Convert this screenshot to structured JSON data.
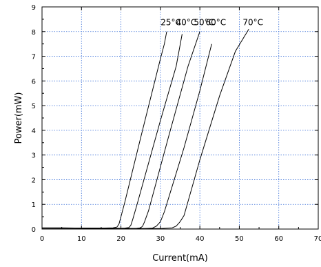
{
  "chart_data": {
    "type": "line",
    "title": "",
    "xlabel": "Current(mA)",
    "ylabel": "Power(mW)",
    "xlim": [
      0,
      70
    ],
    "ylim": [
      0,
      9
    ],
    "xticks": [
      "0",
      "10",
      "20",
      "30",
      "40",
      "50",
      "60",
      "70"
    ],
    "yticks": [
      "0",
      "1",
      "2",
      "3",
      "4",
      "5",
      "6",
      "7",
      "8",
      "9"
    ],
    "grid": true,
    "series": [
      {
        "name": "25°C",
        "x": [
          0,
          5,
          10,
          15,
          18,
          19,
          19.5,
          20,
          21,
          25,
          30,
          31,
          31.6
        ],
        "y": [
          0.05,
          0.05,
          0.04,
          0.04,
          0.05,
          0.08,
          0.2,
          0.5,
          1.1,
          3.7,
          6.9,
          7.5,
          8.0
        ]
      },
      {
        "name": "40°C",
        "x": [
          0,
          10,
          20,
          21,
          22,
          22.5,
          23,
          24,
          30,
          34,
          35.5
        ],
        "y": [
          0.04,
          0.04,
          0.03,
          0.04,
          0.06,
          0.15,
          0.4,
          0.95,
          4.4,
          6.6,
          7.9
        ]
      },
      {
        "name": "50°C",
        "x": [
          0,
          10,
          20,
          24,
          25,
          25.5,
          26,
          27,
          32,
          37,
          40
        ],
        "y": [
          0.04,
          0.04,
          0.02,
          0.03,
          0.05,
          0.12,
          0.3,
          0.75,
          3.7,
          6.6,
          8.0
        ]
      },
      {
        "name": "60°C",
        "x": [
          0,
          10,
          20,
          26,
          28,
          29,
          30,
          31,
          36,
          40,
          43
        ],
        "y": [
          0.04,
          0.04,
          0.02,
          0.02,
          0.04,
          0.12,
          0.3,
          0.7,
          3.3,
          5.6,
          7.5
        ]
      },
      {
        "name": "70°C",
        "x": [
          0,
          10,
          20,
          30,
          33,
          34,
          35,
          36,
          40,
          45,
          49,
          52.4
        ],
        "y": [
          0.04,
          0.03,
          0.02,
          0.02,
          0.05,
          0.12,
          0.3,
          0.55,
          2.8,
          5.4,
          7.2,
          8.1
        ]
      }
    ]
  }
}
